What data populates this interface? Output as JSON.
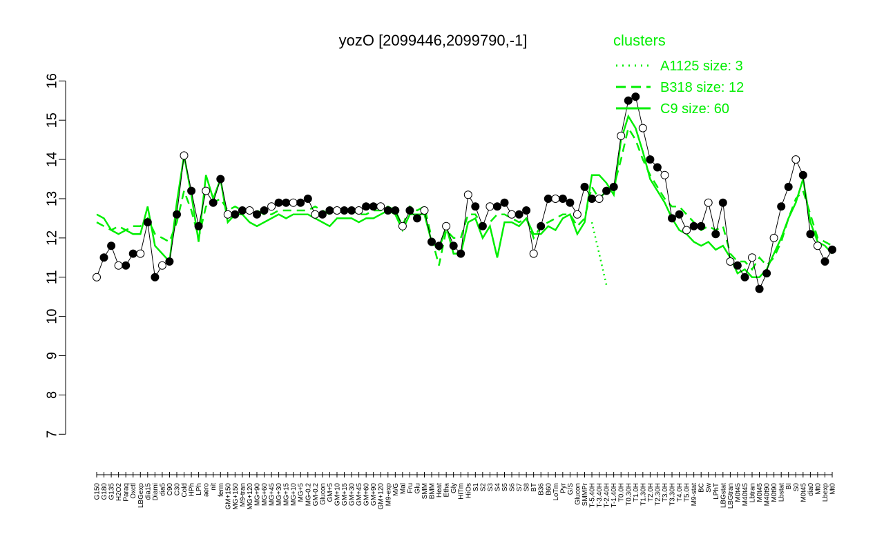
{
  "colors": {
    "cluster_line": "#00ee00",
    "profile": "#000000",
    "axis": "#000000"
  },
  "chart_data": {
    "type": "line",
    "title": "yozO [2099446,2099790,-1]",
    "ylim": [
      7,
      16.5
    ],
    "yticks": [
      7,
      8,
      9,
      10,
      11,
      12,
      13,
      14,
      15,
      16
    ],
    "xtick_labels": [
      "G150",
      "G180",
      "G135",
      "H2O2",
      "Paraq",
      "Oxctl",
      "LBGexp",
      "dia15",
      "Diami",
      "dia5",
      "C90",
      "C30",
      "Cold",
      "HPh",
      "LPh",
      "aero",
      "nit",
      "ferm",
      "GM+150",
      "MG+150",
      "M9-tran",
      "MG+120",
      "MG+90",
      "MG+60",
      "MG+45",
      "MG+30",
      "MG+15",
      "MG+10",
      "MG+5",
      "MG-0.2",
      "GM-0.2",
      "Glucon",
      "GM+5",
      "GM+10",
      "GM+15",
      "GM+30",
      "GM+45",
      "GM+60",
      "GM+90",
      "GM+120",
      "M9-exp",
      "M/G",
      "Mal",
      "Fru",
      "Glu",
      "SMM",
      "BMM",
      "Heat",
      "Etha",
      "Gly",
      "HiTm",
      "HiOs",
      "S1",
      "S2",
      "S3",
      "S4",
      "S5",
      "S6",
      "S7",
      "S8",
      "BT",
      "B36",
      "B60",
      "LoTm",
      "Pyr",
      "G/S",
      "Glucon",
      "SMMPr",
      "T-5.40H",
      "T-3.40H",
      "T-2.40H",
      "T-1.40H",
      "T0.0H",
      "T0.30H",
      "T1.0H",
      "T1.30H",
      "T2.0H",
      "T2.30H",
      "T3.0H",
      "T3.30H",
      "T4.0H",
      "T5.0H",
      "M9-stat",
      "BC",
      "Sw",
      "LPhT",
      "LBGstat",
      "LBGtran",
      "M0t45",
      "M40t45",
      "Lbtran",
      "M0t45",
      "M40t90",
      "M0t90",
      "Lbstat",
      "BI",
      "S0",
      "M0t45",
      "dia0",
      "Mt0",
      "Lbexp",
      "Mt0"
    ],
    "legend": {
      "title": "clusters",
      "position": "top-right",
      "entries": [
        {
          "label": "A1125 size: 3",
          "style": "dotted"
        },
        {
          "label": "B318 size: 12",
          "style": "dashed"
        },
        {
          "label": "C9 size: 60",
          "style": "solid"
        }
      ]
    },
    "series": [
      {
        "name": "A1125 size: 3",
        "style": "dotted",
        "segment": [
          68,
          70
        ],
        "values": [
          12.4,
          11.6,
          10.8
        ]
      },
      {
        "name": "B318 size: 12",
        "style": "dashed",
        "values": [
          12.4,
          12.3,
          12.2,
          12.3,
          12.2,
          12.3,
          12.3,
          12.5,
          12.1,
          12.0,
          11.9,
          12.4,
          13.2,
          12.7,
          12.0,
          12.8,
          12.9,
          13.0,
          12.7,
          12.8,
          12.7,
          12.7,
          12.7,
          12.6,
          12.6,
          12.7,
          12.7,
          12.7,
          12.7,
          12.7,
          12.8,
          12.7,
          12.6,
          12.7,
          12.7,
          12.7,
          12.6,
          12.6,
          12.7,
          12.7,
          12.8,
          12.7,
          12.3,
          12.8,
          12.7,
          12.8,
          12.0,
          11.3,
          12.2,
          12.0,
          12.0,
          12.6,
          12.6,
          12.3,
          12.4,
          12.6,
          12.6,
          12.5,
          12.4,
          12.5,
          12.0,
          12.3,
          12.4,
          12.5,
          12.6,
          12.6,
          12.3,
          12.5,
          13.3,
          13.0,
          13.2,
          13.3,
          14.0,
          14.8,
          14.5,
          14.0,
          13.6,
          13.3,
          13.0,
          12.8,
          12.8,
          12.6,
          12.4,
          12.2,
          12.3,
          12.2,
          12.3,
          11.6,
          11.4,
          11.4,
          11.2,
          11.5,
          11.3,
          11.5,
          11.9,
          12.5,
          13.0,
          13.2,
          12.6,
          12.0,
          11.9,
          11.8
        ]
      },
      {
        "name": "C9 size: 60",
        "style": "solid",
        "values": [
          12.6,
          12.5,
          12.2,
          12.1,
          12.2,
          12.1,
          12.1,
          12.8,
          11.8,
          11.6,
          11.4,
          12.9,
          14.1,
          13.1,
          11.9,
          13.6,
          13.0,
          13.5,
          12.4,
          12.6,
          12.6,
          12.4,
          12.3,
          12.4,
          12.5,
          12.6,
          12.5,
          12.6,
          12.6,
          12.6,
          12.5,
          12.4,
          12.3,
          12.5,
          12.5,
          12.5,
          12.4,
          12.5,
          12.5,
          12.6,
          12.7,
          12.6,
          12.2,
          12.6,
          12.6,
          12.6,
          11.9,
          11.7,
          12.3,
          11.6,
          11.6,
          12.4,
          12.5,
          12.0,
          12.3,
          11.5,
          12.4,
          12.4,
          12.3,
          12.5,
          12.1,
          12.1,
          12.3,
          12.2,
          12.5,
          12.6,
          12.1,
          12.4,
          13.6,
          13.6,
          13.4,
          13.1,
          14.5,
          15.1,
          14.8,
          14.2,
          13.5,
          13.2,
          12.9,
          12.5,
          12.2,
          12.1,
          11.9,
          11.8,
          11.9,
          11.7,
          11.8,
          11.5,
          11.1,
          11.2,
          11.0,
          11.0,
          11.2,
          11.6,
          12.0,
          12.5,
          12.9,
          13.5,
          12.4,
          11.9,
          11.8,
          11.6
        ]
      },
      {
        "name": "",
        "style": "profile",
        "values": [
          11.0,
          11.5,
          11.8,
          11.3,
          11.3,
          11.6,
          11.6,
          12.4,
          11.0,
          11.3,
          11.4,
          12.6,
          14.1,
          13.2,
          12.3,
          13.2,
          12.9,
          13.5,
          12.6,
          12.6,
          12.7,
          12.7,
          12.6,
          12.7,
          12.8,
          12.9,
          12.9,
          12.9,
          12.9,
          13.0,
          12.6,
          12.6,
          12.7,
          12.7,
          12.7,
          12.7,
          12.7,
          12.8,
          12.8,
          12.8,
          12.7,
          12.7,
          12.3,
          12.7,
          12.5,
          12.7,
          11.9,
          11.8,
          12.3,
          11.8,
          11.6,
          13.1,
          12.8,
          12.3,
          12.8,
          12.8,
          12.9,
          12.6,
          12.6,
          12.7,
          11.6,
          12.3,
          13.0,
          13.0,
          13.0,
          12.9,
          12.6,
          13.3,
          13.0,
          13.0,
          13.2,
          13.3,
          14.6,
          15.5,
          15.6,
          14.8,
          14.0,
          13.8,
          13.6,
          12.5,
          12.6,
          12.2,
          12.3,
          12.3,
          12.9,
          12.1,
          12.9,
          11.4,
          11.3,
          11.0,
          11.5,
          10.7,
          11.1,
          12.0,
          12.8,
          13.3,
          14.0,
          13.6,
          12.1,
          11.8,
          11.4,
          11.7
        ]
      }
    ]
  }
}
